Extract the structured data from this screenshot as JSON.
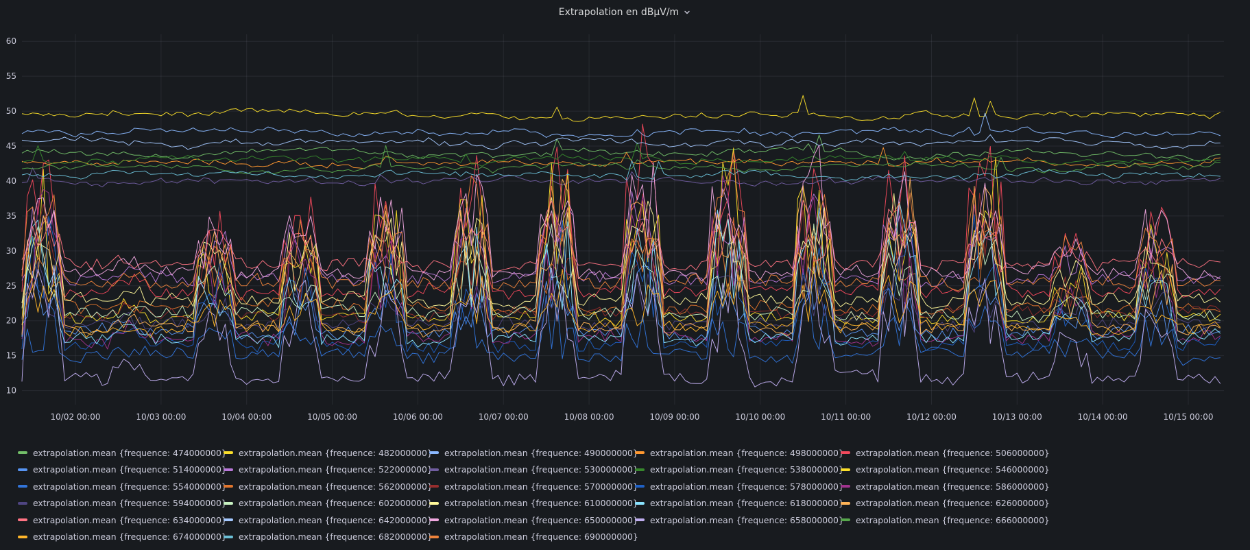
{
  "panel": {
    "title": "Extrapolation en dBµV/m",
    "menu_icon": "chevron-down-icon"
  },
  "chart_data": {
    "type": "line",
    "title": "Extrapolation en dBµV/m",
    "xlabel": "",
    "ylabel": "",
    "ylim": [
      8,
      61
    ],
    "y_ticks": [
      10,
      15,
      20,
      25,
      30,
      35,
      40,
      45,
      50,
      55,
      60
    ],
    "x_range": [
      "10/01 09:00",
      "10/15 10:00"
    ],
    "x_ticks": [
      "10/02 00:00",
      "10/03 00:00",
      "10/04 00:00",
      "10/05 00:00",
      "10/06 00:00",
      "10/07 00:00",
      "10/08 00:00",
      "10/09 00:00",
      "10/10 00:00",
      "10/11 00:00",
      "10/12 00:00",
      "10/13 00:00",
      "10/14 00:00",
      "10/15 00:00"
    ],
    "grid": true,
    "legend_placement": "bottom",
    "day_activity": [
      0.9,
      0.1,
      0.55,
      0.6,
      0.75,
      0.85,
      0.95,
      0.95,
      1.0,
      1.0,
      0.9,
      0.95,
      0.35,
      0.6,
      0.5
    ],
    "series": [
      {
        "name": "extrapolation.mean {frequence: 474000000}",
        "color": "#73bf69",
        "baseline": 44,
        "variable": false
      },
      {
        "name": "extrapolation.mean {frequence: 482000000}",
        "color": "#fade2a",
        "baseline": 49.5,
        "variable": false
      },
      {
        "name": "extrapolation.mean {frequence: 490000000}",
        "color": "#8ab8ff",
        "baseline": 47,
        "variable": false
      },
      {
        "name": "extrapolation.mean {frequence: 498000000}",
        "color": "#ff9830",
        "baseline": 42.5,
        "variable": false
      },
      {
        "name": "extrapolation.mean {frequence: 506000000}",
        "color": "#f2495c",
        "baseline": 24,
        "variable": true
      },
      {
        "name": "extrapolation.mean {frequence: 514000000}",
        "color": "#5794f2",
        "baseline": 18.5,
        "variable": true
      },
      {
        "name": "extrapolation.mean {frequence: 522000000}",
        "color": "#b877d9",
        "baseline": 26,
        "variable": true
      },
      {
        "name": "extrapolation.mean {frequence: 530000000}",
        "color": "#705da0",
        "baseline": 40,
        "variable": false
      },
      {
        "name": "extrapolation.mean {frequence: 538000000}",
        "color": "#37872d",
        "baseline": 43,
        "variable": false
      },
      {
        "name": "extrapolation.mean {frequence: 546000000}",
        "color": "#fade2a",
        "baseline": 20.5,
        "variable": true
      },
      {
        "name": "extrapolation.mean {frequence: 554000000}",
        "color": "#3274d9",
        "baseline": 15,
        "variable": true
      },
      {
        "name": "extrapolation.mean {frequence: 562000000}",
        "color": "#e0752d",
        "baseline": 22,
        "variable": true
      },
      {
        "name": "extrapolation.mean {frequence: 570000000}",
        "color": "#962d2d",
        "baseline": 21,
        "variable": true
      },
      {
        "name": "extrapolation.mean {frequence: 578000000}",
        "color": "#1f60c4",
        "baseline": 16.5,
        "variable": true
      },
      {
        "name": "extrapolation.mean {frequence: 586000000}",
        "color": "#a0328d",
        "baseline": 17.5,
        "variable": true
      },
      {
        "name": "extrapolation.mean {frequence: 594000000}",
        "color": "#4f4582",
        "baseline": 19.5,
        "variable": true
      },
      {
        "name": "extrapolation.mean {frequence: 602000000}",
        "color": "#c8f2c2",
        "baseline": 21,
        "variable": true
      },
      {
        "name": "extrapolation.mean {frequence: 610000000}",
        "color": "#fff899",
        "baseline": 23,
        "variable": true
      },
      {
        "name": "extrapolation.mean {frequence: 618000000}",
        "color": "#8ae3ff",
        "baseline": 17.5,
        "variable": true
      },
      {
        "name": "extrapolation.mean {frequence: 626000000}",
        "color": "#ffb357",
        "baseline": 19,
        "variable": true
      },
      {
        "name": "extrapolation.mean {frequence: 634000000}",
        "color": "#ff7383",
        "baseline": 28,
        "variable": true
      },
      {
        "name": "extrapolation.mean {frequence: 642000000}",
        "color": "#a4c8ff",
        "baseline": 45.5,
        "variable": false
      },
      {
        "name": "extrapolation.mean {frequence: 650000000}",
        "color": "#f0a8e0",
        "baseline": 27,
        "variable": true
      },
      {
        "name": "extrapolation.mean {frequence: 658000000}",
        "color": "#c0aef0",
        "baseline": 11.8,
        "variable": true
      },
      {
        "name": "extrapolation.mean {frequence: 666000000}",
        "color": "#56a64b",
        "baseline": 42,
        "variable": false
      },
      {
        "name": "extrapolation.mean {frequence: 674000000}",
        "color": "#ffb62a",
        "baseline": 19,
        "variable": true
      },
      {
        "name": "extrapolation.mean {frequence: 682000000}",
        "color": "#6bbfd6",
        "baseline": 41,
        "variable": false
      },
      {
        "name": "extrapolation.mean {frequence: 690000000}",
        "color": "#ef843c",
        "baseline": 25.5,
        "variable": true
      }
    ]
  }
}
